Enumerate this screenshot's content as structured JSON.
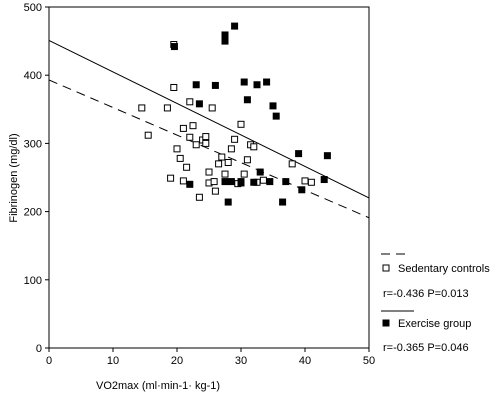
{
  "chart_data": {
    "type": "scatter",
    "xlabel": "VO2max   (ml·min-1· kg-1)",
    "ylabel": "Fibrinogen (mg/dl)",
    "xlim": [
      0,
      50
    ],
    "ylim": [
      0,
      500
    ],
    "xticks": [
      "0",
      "10",
      "20",
      "30",
      "40",
      "50"
    ],
    "yticks": [
      "0",
      "100",
      "200",
      "300",
      "400",
      "500"
    ],
    "grid": false,
    "legend_position": "right",
    "series": [
      {
        "name": "Sedentary controls",
        "marker": "open-square",
        "color": "#000000",
        "stats": "r=-0.436   P=0.013",
        "fit": {
          "style": "dashed",
          "intercept": 393,
          "slope": -4.04
        },
        "points": [
          [
            14.5,
            352
          ],
          [
            15.5,
            312
          ],
          [
            18.5,
            352
          ],
          [
            19.0,
            249
          ],
          [
            19.5,
            445
          ],
          [
            19.5,
            382
          ],
          [
            20.0,
            292
          ],
          [
            20.5,
            278
          ],
          [
            21.0,
            322
          ],
          [
            21.0,
            245
          ],
          [
            21.5,
            265
          ],
          [
            22.0,
            361
          ],
          [
            22.0,
            309
          ],
          [
            22.5,
            326
          ],
          [
            23.0,
            298
          ],
          [
            23.5,
            221
          ],
          [
            24.0,
            305
          ],
          [
            24.5,
            310
          ],
          [
            24.5,
            300
          ],
          [
            25.0,
            258
          ],
          [
            25.0,
            242
          ],
          [
            25.5,
            352
          ],
          [
            25.8,
            244
          ],
          [
            26.0,
            230
          ],
          [
            26.5,
            270
          ],
          [
            27.0,
            280
          ],
          [
            27.5,
            255
          ],
          [
            28.0,
            272
          ],
          [
            28.5,
            292
          ],
          [
            29.0,
            306
          ],
          [
            29.5,
            241
          ],
          [
            30.0,
            328
          ],
          [
            30.5,
            255
          ],
          [
            31.0,
            276
          ],
          [
            31.5,
            298
          ],
          [
            32.0,
            295
          ],
          [
            32.5,
            243
          ],
          [
            33.5,
            246
          ],
          [
            38.0,
            270
          ],
          [
            40.0,
            245
          ],
          [
            41.0,
            243
          ]
        ]
      },
      {
        "name": "Exercise group",
        "marker": "filled-square",
        "color": "#000000",
        "stats": "r=-0.365   P=0.046",
        "fit": {
          "style": "solid",
          "intercept": 451,
          "slope": -4.62
        },
        "points": [
          [
            19.6,
            442
          ],
          [
            22.0,
            240
          ],
          [
            23.0,
            386
          ],
          [
            23.5,
            358
          ],
          [
            26.0,
            385
          ],
          [
            27.5,
            459
          ],
          [
            27.5,
            450
          ],
          [
            27.5,
            244
          ],
          [
            28.0,
            214
          ],
          [
            28.5,
            244
          ],
          [
            29.0,
            472
          ],
          [
            30.0,
            244
          ],
          [
            30.0,
            242
          ],
          [
            30.5,
            390
          ],
          [
            31.0,
            364
          ],
          [
            32.0,
            243
          ],
          [
            32.5,
            386
          ],
          [
            33.0,
            258
          ],
          [
            34.0,
            390
          ],
          [
            34.5,
            244
          ],
          [
            35.0,
            355
          ],
          [
            35.5,
            340
          ],
          [
            36.5,
            214
          ],
          [
            37.0,
            244
          ],
          [
            39.0,
            285
          ],
          [
            39.5,
            232
          ],
          [
            43.0,
            247
          ],
          [
            43.5,
            282
          ]
        ]
      }
    ]
  }
}
